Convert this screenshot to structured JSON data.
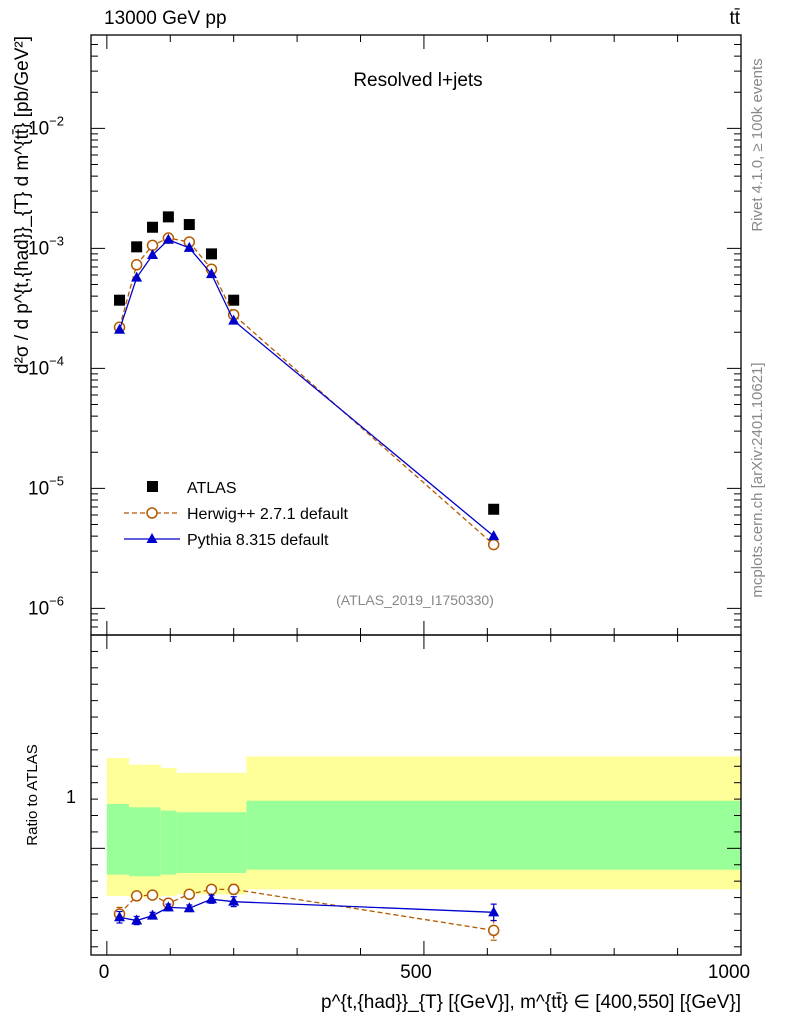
{
  "header": {
    "left": "13000 GeV pp",
    "right": "tt̄"
  },
  "side_labels": {
    "rivet": "Rivet 4.1.0, ≥ 100k events",
    "mcplots": "mcplots.cern.ch [arXiv:2401.10621]"
  },
  "chart_data": [
    {
      "type": "scatter",
      "panel": "main",
      "title": "Resolved l+jets",
      "watermark": "(ATLAS_2019_I1750330)",
      "ylabel": "d²σ / d p^{t,{had}}_{T} d m^{tt̄} [pb/GeV²]",
      "yscale": "log",
      "ylim": [
        6e-07,
        0.06
      ],
      "xlim": [
        -25,
        1000
      ],
      "ytick_labels": [
        "10^-6",
        "10^-5",
        "10^-4",
        "10^-3",
        "10^-2"
      ],
      "legend_position": "middle-left",
      "series": [
        {
          "name": "ATLAS",
          "marker": "square",
          "color": "#000000",
          "x": [
            20,
            47,
            72,
            97,
            130,
            165,
            200,
            610
          ],
          "y": [
            0.00037,
            0.00103,
            0.0015,
            0.00183,
            0.00158,
            0.0009,
            0.00037,
            6.7e-06
          ]
        },
        {
          "name": "Herwig++ 2.7.1 default",
          "marker": "open-circle",
          "line": "dashed",
          "color": "#b35a00",
          "x": [
            20,
            47,
            72,
            97,
            130,
            165,
            200,
            610
          ],
          "y": [
            0.00022,
            0.00073,
            0.00106,
            0.00122,
            0.00113,
            0.00067,
            0.00028,
            3.4e-06
          ]
        },
        {
          "name": "Pythia 8.315 default",
          "marker": "filled-triangle",
          "line": "solid",
          "color": "#0000cc",
          "x": [
            20,
            47,
            72,
            97,
            130,
            165,
            200,
            610
          ],
          "y": [
            0.00021,
            0.00057,
            0.00088,
            0.00118,
            0.00101,
            0.00061,
            0.00025,
            4e-06
          ]
        }
      ]
    },
    {
      "type": "scatter",
      "panel": "ratio",
      "ylabel": "Ratio to ATLAS",
      "xlabel": "p^{t,{had}}_{T} [{GeV}], m^{tt̄} ∈ [400,550] [{GeV}]",
      "xlim": [
        -25,
        1000
      ],
      "ylim": [
        0.35,
        2.3
      ],
      "ytick_labels": [
        "1"
      ],
      "xtick_labels": [
        "0",
        "500",
        "1000"
      ],
      "bands": {
        "edges": [
          0,
          35,
          85,
          110,
          220,
          1000
        ],
        "yellow_low": [
          0.71,
          0.7,
          0.71,
          0.72,
          0.75
        ],
        "yellow_high": [
          1.55,
          1.51,
          1.49,
          1.46,
          1.56
        ],
        "green_low": [
          0.84,
          0.83,
          0.84,
          0.85,
          0.87
        ],
        "green_high": [
          1.27,
          1.25,
          1.23,
          1.22,
          1.29
        ]
      },
      "series": [
        {
          "name": "Herwig++ 2.7.1 default",
          "color": "#b35a00",
          "x": [
            20,
            47,
            72,
            97,
            130,
            165,
            200,
            610
          ],
          "y": [
            0.6,
            0.71,
            0.715,
            0.665,
            0.72,
            0.75,
            0.75,
            0.5
          ],
          "err": [
            0.04,
            0.025,
            0.025,
            0.02,
            0.02,
            0.02,
            0.03,
            0.06
          ]
        },
        {
          "name": "Pythia 8.315 default",
          "color": "#0000cc",
          "x": [
            20,
            47,
            72,
            97,
            130,
            165,
            200,
            610
          ],
          "y": [
            0.58,
            0.56,
            0.59,
            0.64,
            0.635,
            0.69,
            0.675,
            0.61
          ],
          "err": [
            0.035,
            0.025,
            0.02,
            0.02,
            0.02,
            0.025,
            0.03,
            0.05
          ]
        }
      ]
    }
  ]
}
